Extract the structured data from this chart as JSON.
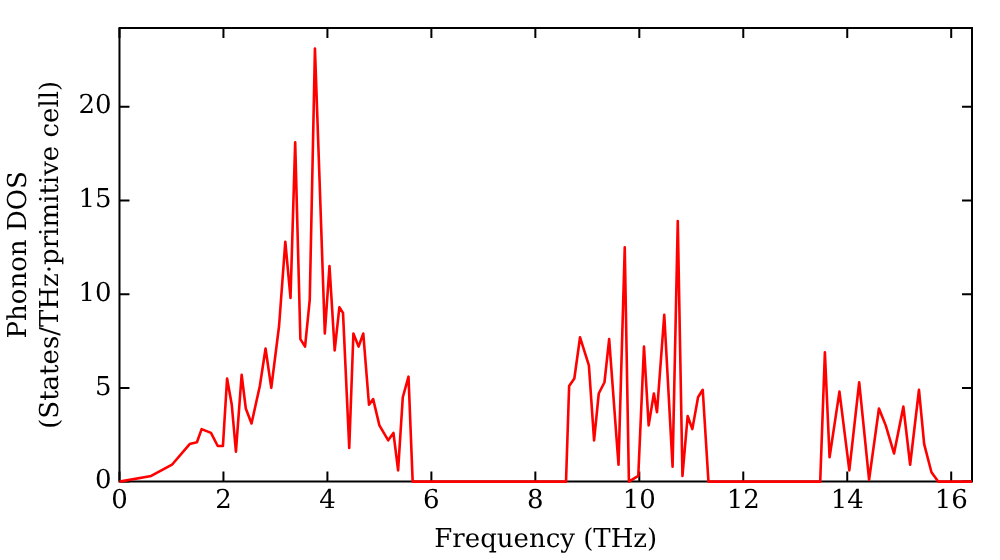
{
  "chart_data": {
    "type": "line",
    "xlabel": "Frequency (THz)",
    "ylabel": "Phonon DOS\n(States/THz·primitive cell)",
    "xlim": [
      0,
      16.4
    ],
    "ylim": [
      0,
      24.2
    ],
    "xticks": [
      0,
      2,
      4,
      6,
      8,
      10,
      12,
      14,
      16
    ],
    "yticks": [
      0,
      5,
      10,
      15,
      20
    ],
    "grid": false,
    "legend": false,
    "marker": "none",
    "line_style": "solid",
    "series": [
      {
        "color": "#ff0000",
        "x": [
          0,
          0.61,
          1.01,
          1.35,
          1.49,
          1.58,
          1.76,
          1.89,
          1.99,
          2.07,
          2.16,
          2.24,
          2.35,
          2.43,
          2.54,
          2.7,
          2.81,
          2.92,
          3.07,
          3.19,
          3.29,
          3.38,
          3.48,
          3.57,
          3.66,
          3.76,
          3.85,
          3.95,
          4.04,
          4.14,
          4.23,
          4.3,
          4.42,
          4.5,
          4.6,
          4.69,
          4.8,
          4.88,
          5.0,
          5.17,
          5.27,
          5.36,
          5.45,
          5.56,
          5.64,
          6.29,
          8.11,
          8.59,
          8.65,
          8.75,
          8.86,
          9.03,
          9.13,
          9.22,
          9.33,
          9.42,
          9.6,
          9.72,
          9.8,
          9.98,
          10.09,
          10.18,
          10.28,
          10.34,
          10.48,
          10.64,
          10.74,
          10.83,
          10.93,
          11.02,
          11.13,
          11.22,
          11.33,
          11.76,
          12.98,
          13.48,
          13.57,
          13.66,
          13.85,
          14.04,
          14.23,
          14.42,
          14.61,
          14.74,
          14.9,
          15.08,
          15.21,
          15.38,
          15.48,
          15.62,
          15.75,
          16.4
        ],
        "values": [
          0,
          0.3,
          0.9,
          2.0,
          2.1,
          2.8,
          2.6,
          1.9,
          1.9,
          5.5,
          4.1,
          1.6,
          5.7,
          3.9,
          3.1,
          5.1,
          7.1,
          5.0,
          8.3,
          12.8,
          9.8,
          18.1,
          7.6,
          7.2,
          9.7,
          23.1,
          16.0,
          7.9,
          11.5,
          7.0,
          9.3,
          9.0,
          1.8,
          7.9,
          7.2,
          7.9,
          4.1,
          4.4,
          3.0,
          2.2,
          2.6,
          0.6,
          4.5,
          5.6,
          0,
          0,
          0,
          0,
          5.1,
          5.5,
          7.7,
          6.2,
          2.2,
          4.7,
          5.3,
          7.6,
          0.9,
          12.5,
          0,
          0.3,
          7.2,
          3.0,
          4.7,
          3.7,
          8.9,
          0.8,
          13.9,
          0.3,
          3.5,
          2.8,
          4.5,
          4.9,
          0,
          0,
          0,
          0,
          6.9,
          1.3,
          4.8,
          0.6,
          5.3,
          0.1,
          3.9,
          3.0,
          1.5,
          4.0,
          0.9,
          4.9,
          2.0,
          0.5,
          0,
          0
        ]
      }
    ]
  }
}
